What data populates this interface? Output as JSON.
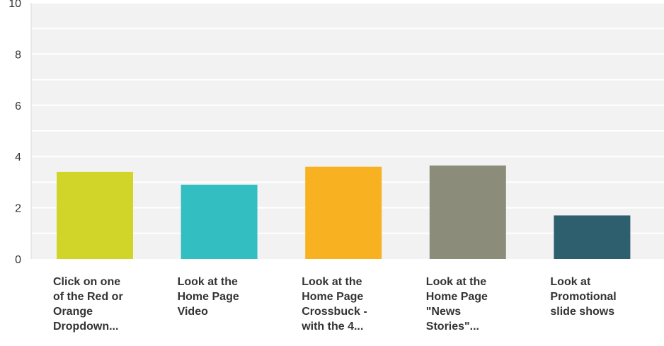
{
  "chart_data": {
    "type": "bar",
    "categories": [
      "Click on one\nof the Red or\nOrange\nDropdown...",
      "Look at the\nHome Page\nVideo",
      "Look at the\nHome Page\nCrossbuck -\nwith the 4...",
      "Look at the\nHome Page\n\"News\nStories\"...",
      "Look at\nPromotional\nslide shows"
    ],
    "values": [
      3.4,
      2.9,
      3.6,
      3.65,
      1.7
    ],
    "colors": [
      "#d1d52a",
      "#33bfc1",
      "#f7b121",
      "#8b8c7a",
      "#2e5f6e"
    ],
    "yticks": [
      "0",
      "2",
      "4",
      "6",
      "8",
      "10"
    ],
    "ylim": [
      0,
      10
    ],
    "grid": true,
    "title": "",
    "xlabel": "",
    "ylabel": ""
  }
}
